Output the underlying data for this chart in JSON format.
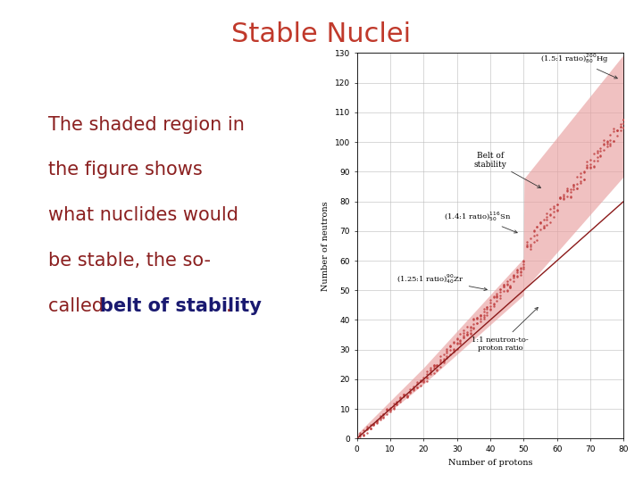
{
  "title": "Stable Nuclei",
  "title_color": "#C0392B",
  "title_fontsize": 22,
  "body_lines": [
    "The shaded region in",
    "the figure shows",
    "what nuclides would",
    "be stable, the so-",
    "called "
  ],
  "body_text_color": "#8B2020",
  "body_highlight": "belt of stability",
  "body_highlight_color": "#191970",
  "body_period_color": "#8B2020",
  "body_fontsize": 15,
  "background_color": "#FFFFFF",
  "plot_bg": "#FFFFFF",
  "xlabel": "Number of protons",
  "ylabel": "Number of neutrons",
  "xlim": [
    0,
    80
  ],
  "ylim": [
    0,
    130
  ],
  "xticks": [
    0,
    10,
    20,
    30,
    40,
    50,
    60,
    70,
    80
  ],
  "yticks": [
    0,
    10,
    20,
    30,
    40,
    50,
    60,
    70,
    80,
    90,
    100,
    110,
    120,
    130
  ],
  "belt_fill_color": "#E8A0A0",
  "belt_fill_alpha": 0.65,
  "scatter_color": "#C04040",
  "scatter_alpha": 0.85,
  "scatter_size": 3,
  "line_color": "#8B1A1A",
  "line_width": 1.0,
  "grid_color": "#BBBBBB",
  "annot_fontsize": 6,
  "axis_label_fontsize": 7,
  "tick_fontsize": 6.5
}
